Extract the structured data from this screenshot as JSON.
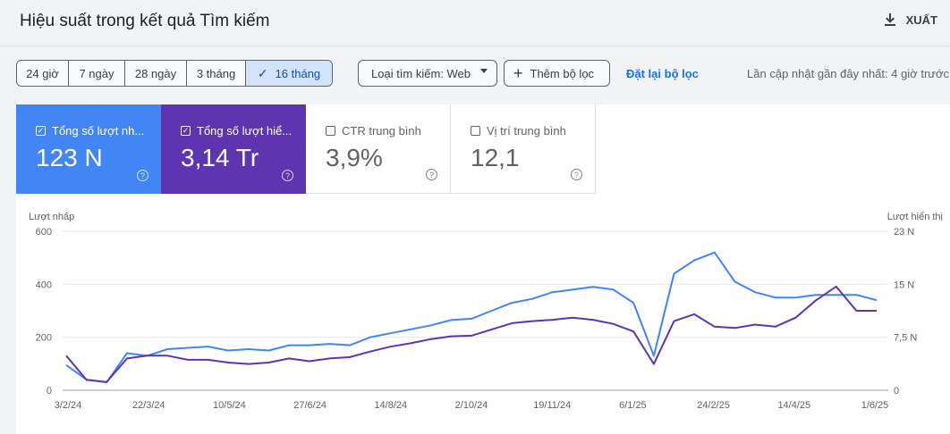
{
  "header": {
    "title": "Hiệu suất trong kết quả Tìm kiếm",
    "export_label": "XUẤT"
  },
  "date_ranges": [
    {
      "label": "24 giờ",
      "selected": false
    },
    {
      "label": "7 ngày",
      "selected": false
    },
    {
      "label": "28 ngày",
      "selected": false
    },
    {
      "label": "3 tháng",
      "selected": false
    },
    {
      "label": "16 tháng",
      "selected": true
    }
  ],
  "filters": {
    "search_type": "Loại tìm kiếm: Web",
    "add_filter": "Thêm bộ lọc",
    "reset": "Đặt lại bộ lọc",
    "updated": "Lần cập nhật gần đây nhất: 4 giờ trước"
  },
  "metrics": [
    {
      "label": "Tổng số lượt nh...",
      "value": "123 N",
      "checked": true,
      "color": "#4285f4"
    },
    {
      "label": "Tổng số lượt hiể...",
      "value": "3,14 Tr",
      "checked": true,
      "color": "#5e35b1"
    },
    {
      "label": "CTR trung bình",
      "value": "3,9%",
      "checked": false,
      "color": "#ffffff"
    },
    {
      "label": "Vị trí trung bình",
      "value": "12,1",
      "checked": false,
      "color": "#ffffff"
    }
  ],
  "chart_data": {
    "type": "line",
    "left_axis_label": "Lượt nhấp",
    "right_axis_label": "Lượt hiển thị",
    "left_ticks": [
      "0",
      "200",
      "400",
      "600"
    ],
    "right_ticks": [
      "0",
      "7,5 N",
      "15 N",
      "23 N"
    ],
    "left_ylim": [
      0,
      600
    ],
    "right_ylim": [
      0,
      23000
    ],
    "x_ticks": [
      "3/2/24",
      "22/3/24",
      "10/5/24",
      "27/6/24",
      "14/8/24",
      "2/10/24",
      "19/11/24",
      "6/1/25",
      "24/2/25",
      "14/4/25",
      "1/6/25"
    ],
    "grid": true,
    "series": [
      {
        "name": "Lượt nhấp",
        "axis": "left",
        "color": "#4285f4",
        "values": [
          95,
          40,
          30,
          140,
          130,
          155,
          160,
          165,
          150,
          155,
          150,
          170,
          170,
          175,
          170,
          200,
          215,
          230,
          245,
          265,
          270,
          300,
          330,
          345,
          370,
          380,
          390,
          380,
          330,
          130,
          440,
          490,
          520,
          410,
          370,
          350,
          350,
          360,
          360,
          360,
          340
        ]
      },
      {
        "name": "Lượt hiển thị",
        "axis": "right",
        "color": "#5e35b1",
        "values": [
          5000,
          1500,
          1200,
          4600,
          5000,
          5000,
          4400,
          4400,
          4000,
          3800,
          4000,
          4600,
          4200,
          4600,
          4800,
          5600,
          6300,
          6800,
          7400,
          7800,
          7900,
          8800,
          9700,
          10000,
          10200,
          10500,
          10200,
          9600,
          8500,
          3800,
          10000,
          11000,
          9200,
          9000,
          9500,
          9200,
          10500,
          13000,
          15000,
          11500,
          11500
        ]
      }
    ]
  }
}
